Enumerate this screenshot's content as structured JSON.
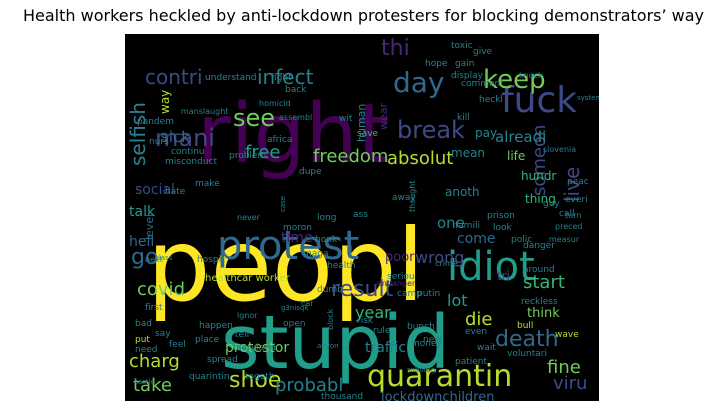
{
  "title": "Health workers heckled by anti-lockdown protesters for blocking demonstrators’ way",
  "colors": {
    "background": "#000000",
    "purple": "#440154",
    "indigo": "#482878",
    "blue": "#3e4989",
    "steel": "#31688e",
    "teal": "#26828e",
    "sea": "#1f9e89",
    "green": "#35b779",
    "lime": "#6ece58",
    "yellowgreen": "#b5de2b",
    "yellow": "#fde725"
  },
  "words": [
    {
      "text": "peopl",
      "size": 100,
      "color": "yellow"
    },
    {
      "text": "right",
      "size": 82,
      "color": "purple"
    },
    {
      "text": "stupid",
      "size": 74,
      "color": "sea"
    },
    {
      "text": "protest",
      "size": 40,
      "color": "steel"
    },
    {
      "text": "idiot",
      "size": 40,
      "color": "sea"
    },
    {
      "text": "fuck",
      "size": 36,
      "color": "blue"
    },
    {
      "text": "quarantin",
      "size": 30,
      "color": "yellowgreen"
    },
    {
      "text": "day",
      "size": 28,
      "color": "steel"
    },
    {
      "text": "keep",
      "size": 26,
      "color": "lime"
    },
    {
      "text": "mani",
      "size": 24,
      "color": "blue"
    },
    {
      "text": "see",
      "size": 24,
      "color": "lime"
    },
    {
      "text": "break",
      "size": 24,
      "color": "blue"
    },
    {
      "text": "result",
      "size": 22,
      "color": "blue"
    },
    {
      "text": "death",
      "size": 22,
      "color": "steel"
    },
    {
      "text": "shoe",
      "size": 22,
      "color": "yellowgreen"
    },
    {
      "text": "go",
      "size": 22,
      "color": "steel"
    },
    {
      "text": "thi",
      "size": 22,
      "color": "indigo"
    },
    {
      "text": "contri",
      "size": 20,
      "color": "blue"
    },
    {
      "text": "infect",
      "size": 20,
      "color": "teal"
    },
    {
      "text": "live",
      "size": 20,
      "color": "blue"
    },
    {
      "text": "selfish",
      "size": 20,
      "color": "teal"
    },
    {
      "text": "freedom",
      "size": 18,
      "color": "lime"
    },
    {
      "text": "free",
      "size": 18,
      "color": "sea"
    },
    {
      "text": "someon",
      "size": 18,
      "color": "blue"
    },
    {
      "text": "absolut",
      "size": 18,
      "color": "yellowgreen"
    },
    {
      "text": "probabl",
      "size": 18,
      "color": "teal"
    },
    {
      "text": "viru",
      "size": 18,
      "color": "blue"
    },
    {
      "text": "charg",
      "size": 18,
      "color": "yellowgreen"
    },
    {
      "text": "take",
      "size": 18,
      "color": "lime"
    },
    {
      "text": "die",
      "size": 18,
      "color": "yellowgreen"
    },
    {
      "text": "fine",
      "size": 18,
      "color": "lime"
    },
    {
      "text": "covid",
      "size": 18,
      "color": "lime"
    },
    {
      "text": "start",
      "size": 18,
      "color": "green"
    },
    {
      "text": "wrong",
      "size": 16,
      "color": "blue"
    },
    {
      "text": "year",
      "size": 16,
      "color": "green"
    },
    {
      "text": "lot",
      "size": 16,
      "color": "sea"
    },
    {
      "text": "alreadi",
      "size": 15,
      "color": "teal"
    },
    {
      "text": "sick",
      "size": 15,
      "color": "steel"
    },
    {
      "text": "social",
      "size": 14,
      "color": "blue"
    },
    {
      "text": "hell",
      "size": 14,
      "color": "steel"
    },
    {
      "text": "talk",
      "size": 14,
      "color": "sea"
    },
    {
      "text": "one",
      "size": 15,
      "color": "teal"
    },
    {
      "text": "come",
      "size": 14,
      "color": "steel"
    },
    {
      "text": "time",
      "size": 14,
      "color": "indigo"
    },
    {
      "text": "protestor",
      "size": 14,
      "color": "lime"
    },
    {
      "text": "traffic",
      "size": 14,
      "color": "teal"
    },
    {
      "text": "lockdownchildren",
      "size": 13,
      "color": "steel"
    },
    {
      "text": "poor",
      "size": 13,
      "color": "indigo"
    },
    {
      "text": "think",
      "size": 13,
      "color": "lime"
    },
    {
      "text": "hundr",
      "size": 12,
      "color": "green"
    },
    {
      "text": "thing",
      "size": 12,
      "color": "green"
    },
    {
      "text": "anoth",
      "size": 12,
      "color": "teal"
    },
    {
      "text": "life",
      "size": 12,
      "color": "lime"
    },
    {
      "text": "mean",
      "size": 12,
      "color": "teal"
    },
    {
      "text": "pay",
      "size": 12,
      "color": "teal"
    },
    {
      "text": "way",
      "size": 12,
      "color": "yellowgreen"
    },
    {
      "text": "human",
      "size": 11,
      "color": "teal"
    },
    {
      "text": "wear",
      "size": 11,
      "color": "indigo"
    },
    {
      "text": "level",
      "size": 11,
      "color": "steel"
    },
    {
      "text": "tri",
      "size": 12,
      "color": "blue"
    },
    {
      "text": "healthcar worker",
      "size": 10,
      "color": "yellowgreen"
    },
    {
      "text": "toxic",
      "size": 9,
      "color": "teal"
    },
    {
      "text": "understand",
      "size": 9,
      "color": "teal"
    },
    {
      "text": "fight",
      "size": 9,
      "color": "teal"
    },
    {
      "text": "back",
      "size": 9,
      "color": "teal"
    },
    {
      "text": "wit",
      "size": 9,
      "color": "teal"
    },
    {
      "text": "save",
      "size": 9,
      "color": "green"
    },
    {
      "text": "africa",
      "size": 9,
      "color": "teal"
    },
    {
      "text": "problem",
      "size": 9,
      "color": "teal"
    },
    {
      "text": "misconduct",
      "size": 9,
      "color": "teal"
    },
    {
      "text": "make",
      "size": 9,
      "color": "teal"
    },
    {
      "text": "hospit",
      "size": 9,
      "color": "teal"
    },
    {
      "text": "health",
      "size": 9,
      "color": "teal"
    },
    {
      "text": "maga",
      "size": 9,
      "color": "teal"
    },
    {
      "text": "long",
      "size": 9,
      "color": "teal"
    },
    {
      "text": "honk",
      "size": 9,
      "color": "teal"
    },
    {
      "text": "ass",
      "size": 9,
      "color": "teal"
    },
    {
      "text": "away",
      "size": 9,
      "color": "teal"
    },
    {
      "text": "kill",
      "size": 9,
      "color": "teal"
    },
    {
      "text": "slovenia",
      "size": 8,
      "color": "teal"
    },
    {
      "text": "peac",
      "size": 9,
      "color": "teal"
    },
    {
      "text": "prison",
      "size": 9,
      "color": "teal"
    },
    {
      "text": "look",
      "size": 9,
      "color": "teal"
    },
    {
      "text": "famili",
      "size": 9,
      "color": "teal"
    },
    {
      "text": "polic",
      "size": 9,
      "color": "teal"
    },
    {
      "text": "guy",
      "size": 9,
      "color": "teal"
    },
    {
      "text": "everi",
      "size": 9,
      "color": "teal"
    },
    {
      "text": "call",
      "size": 9,
      "color": "teal"
    },
    {
      "text": "danger",
      "size": 9,
      "color": "teal"
    },
    {
      "text": "around",
      "size": 9,
      "color": "teal"
    },
    {
      "text": "reckless",
      "size": 9,
      "color": "teal"
    },
    {
      "text": "bull",
      "size": 9,
      "color": "yellowgreen"
    },
    {
      "text": "wave",
      "size": 9,
      "color": "yellowgreen"
    },
    {
      "text": "wait",
      "size": 9,
      "color": "teal"
    },
    {
      "text": "first",
      "size": 9,
      "color": "teal"
    },
    {
      "text": "bad",
      "size": 9,
      "color": "teal"
    },
    {
      "text": "put",
      "size": 9,
      "color": "yellowgreen"
    },
    {
      "text": "need",
      "size": 9,
      "color": "teal"
    },
    {
      "text": "happen",
      "size": 9,
      "color": "teal"
    },
    {
      "text": "feel",
      "size": 9,
      "color": "teal"
    },
    {
      "text": "say",
      "size": 9,
      "color": "teal"
    },
    {
      "text": "place",
      "size": 9,
      "color": "teal"
    },
    {
      "text": "tell",
      "size": 9,
      "color": "teal"
    },
    {
      "text": "spread",
      "size": 9,
      "color": "teal"
    },
    {
      "text": "maryland",
      "size": 9,
      "color": "teal"
    },
    {
      "text": "quarintin",
      "size": 9,
      "color": "teal"
    },
    {
      "text": "togeth",
      "size": 9,
      "color": "teal"
    },
    {
      "text": "thousand",
      "size": 9,
      "color": "teal"
    },
    {
      "text": "open",
      "size": 9,
      "color": "teal"
    },
    {
      "text": "dumb",
      "size": 9,
      "color": "teal"
    },
    {
      "text": "risk",
      "size": 9,
      "color": "teal"
    },
    {
      "text": "rule",
      "size": 9,
      "color": "teal"
    },
    {
      "text": "bunch",
      "size": 9,
      "color": "teal"
    },
    {
      "text": "money",
      "size": 9,
      "color": "teal"
    },
    {
      "text": "new",
      "size": 9,
      "color": "teal"
    },
    {
      "text": "even",
      "size": 9,
      "color": "teal"
    },
    {
      "text": "patient",
      "size": 9,
      "color": "teal"
    },
    {
      "text": "voluntari",
      "size": 9,
      "color": "teal"
    },
    {
      "text": "putin",
      "size": 9,
      "color": "teal"
    },
    {
      "text": "seriou",
      "size": 9,
      "color": "teal"
    },
    {
      "text": "camp",
      "size": 9,
      "color": "teal"
    },
    {
      "text": "crime",
      "size": 8,
      "color": "teal"
    },
    {
      "text": "hope",
      "size": 9,
      "color": "teal"
    },
    {
      "text": "gain",
      "size": 9,
      "color": "teal"
    },
    {
      "text": "give",
      "size": 9,
      "color": "teal"
    },
    {
      "text": "display",
      "size": 9,
      "color": "teal"
    },
    {
      "text": "comment",
      "size": 9,
      "color": "teal"
    },
    {
      "text": "heckl",
      "size": 9,
      "color": "teal"
    },
    {
      "text": "knock",
      "size": 8,
      "color": "teal"
    },
    {
      "text": "pandem",
      "size": 9,
      "color": "teal"
    },
    {
      "text": "nurs",
      "size": 9,
      "color": "teal"
    },
    {
      "text": "continu",
      "size": 9,
      "color": "teal"
    },
    {
      "text": "manslaught",
      "size": 8,
      "color": "teal"
    },
    {
      "text": "homicid",
      "size": 8,
      "color": "teal"
    },
    {
      "text": "assembl",
      "size": 8,
      "color": "teal"
    },
    {
      "text": "moron",
      "size": 9,
      "color": "teal"
    },
    {
      "text": "dupe",
      "size": 9,
      "color": "teal"
    },
    {
      "text": "ignor",
      "size": 8,
      "color": "teal"
    },
    {
      "text": "endanger",
      "size": 8,
      "color": "indigo"
    },
    {
      "text": "g3nisqk",
      "size": 7,
      "color": "teal"
    },
    {
      "text": "block",
      "size": 8,
      "color": "teal"
    },
    {
      "text": "preced",
      "size": 8,
      "color": "teal"
    },
    {
      "text": "measur",
      "size": 8,
      "color": "teal"
    },
    {
      "text": "sabotag",
      "size": 7,
      "color": "teal"
    },
    {
      "text": "system",
      "size": 7,
      "color": "teal"
    },
    {
      "text": "tactic",
      "size": 7,
      "color": "teal"
    },
    {
      "text": "case",
      "size": 7,
      "color": "teal"
    },
    {
      "text": "class",
      "size": 7,
      "color": "teal"
    },
    {
      "text": "never",
      "size": 8,
      "color": "teal"
    },
    {
      "text": "car",
      "size": 8,
      "color": "teal"
    },
    {
      "text": "anyon",
      "size": 7,
      "color": "teal"
    },
    {
      "text": "next",
      "size": 8,
      "color": "teal"
    },
    {
      "text": "hate",
      "size": 9,
      "color": "teal"
    },
    {
      "text": "thought",
      "size": 8,
      "color": "teal"
    },
    {
      "text": "turn",
      "size": 8,
      "color": "teal"
    }
  ]
}
